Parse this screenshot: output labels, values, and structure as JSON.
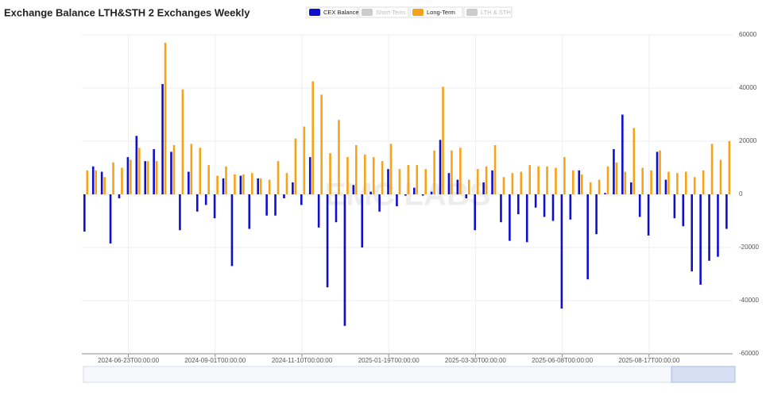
{
  "chart_data": {
    "type": "bar",
    "title": "Exchange Balance LTH&STH 2 Exchanges Weekly",
    "watermark": "EMC LABS",
    "categories": [
      null,
      null,
      null,
      null,
      null,
      "2024-06-23T00:00:00",
      null,
      null,
      null,
      null,
      null,
      null,
      null,
      null,
      null,
      "2024-09-01T00:00:00",
      null,
      null,
      null,
      null,
      null,
      null,
      null,
      null,
      null,
      "2024-11-10T00:00:00",
      null,
      null,
      null,
      null,
      null,
      null,
      null,
      null,
      null,
      "2025-01-19T00:00:00",
      null,
      null,
      null,
      null,
      null,
      null,
      null,
      null,
      null,
      "2025-03-30T00:00:00",
      null,
      null,
      null,
      null,
      null,
      null,
      null,
      null,
      null,
      "2025-06-08T00:00:00",
      null,
      null,
      null,
      null,
      null,
      null,
      null,
      null,
      null,
      "2025-08-17T00:00:00",
      null,
      null,
      null,
      null,
      null,
      null,
      null,
      null,
      null
    ],
    "series": [
      {
        "name": "CEX Balance",
        "color": "#1010cc",
        "values": [
          -14000,
          10500,
          8500,
          -18500,
          -1500,
          14000,
          22000,
          12500,
          17000,
          41500,
          16000,
          -13500,
          8500,
          -6500,
          -4000,
          -9000,
          6000,
          -27000,
          7000,
          -13000,
          6000,
          -8000,
          -8000,
          -1500,
          4500,
          -4000,
          14000,
          -12500,
          -35000,
          -10500,
          -49500,
          3500,
          -20000,
          1000,
          -6500,
          9500,
          -4500,
          -500,
          2500,
          -500,
          1000,
          20500,
          8000,
          5500,
          -1500,
          -13500,
          4500,
          9000,
          -10500,
          -17500,
          -7500,
          -18000,
          -5000,
          -8500,
          -10000,
          -43000,
          -9500,
          9000,
          -32000,
          -15000,
          500,
          17000,
          30000,
          4500,
          -8500,
          -15500,
          16000,
          5500,
          -9000,
          -12000,
          -29000,
          -34000,
          -25000,
          -23500,
          -13000
        ]
      },
      {
        "name": "Short-Term",
        "color": "#cccccc",
        "hidden": true
      },
      {
        "name": "Long-Term",
        "color": "#f5a31a",
        "values": [
          9000,
          9000,
          6500,
          12000,
          10000,
          13000,
          17500,
          12500,
          12500,
          57000,
          18500,
          39500,
          19000,
          17500,
          11000,
          7000,
          10500,
          7500,
          7500,
          8000,
          6000,
          5500,
          12500,
          8000,
          21000,
          25500,
          42500,
          37500,
          15500,
          28000,
          14000,
          18500,
          15000,
          14000,
          12500,
          19000,
          9500,
          11000,
          11000,
          9500,
          16500,
          40500,
          16500,
          17500,
          5500,
          9500,
          10500,
          18500,
          6500,
          8000,
          8500,
          11000,
          10500,
          10500,
          10000,
          14000,
          9000,
          7500,
          4500,
          5500,
          10500,
          12000,
          8500,
          25000,
          10000,
          9000,
          16500,
          8500,
          8000,
          8500,
          6500,
          9000,
          19000,
          13000,
          20000
        ]
      },
      {
        "name": "LTH & STH",
        "color": "#cccccc",
        "hidden": true
      }
    ],
    "ylim": [
      -60000,
      60000
    ],
    "yticks": [
      60000,
      40000,
      20000,
      0,
      -20000,
      -40000,
      -60000
    ],
    "grid": true
  }
}
